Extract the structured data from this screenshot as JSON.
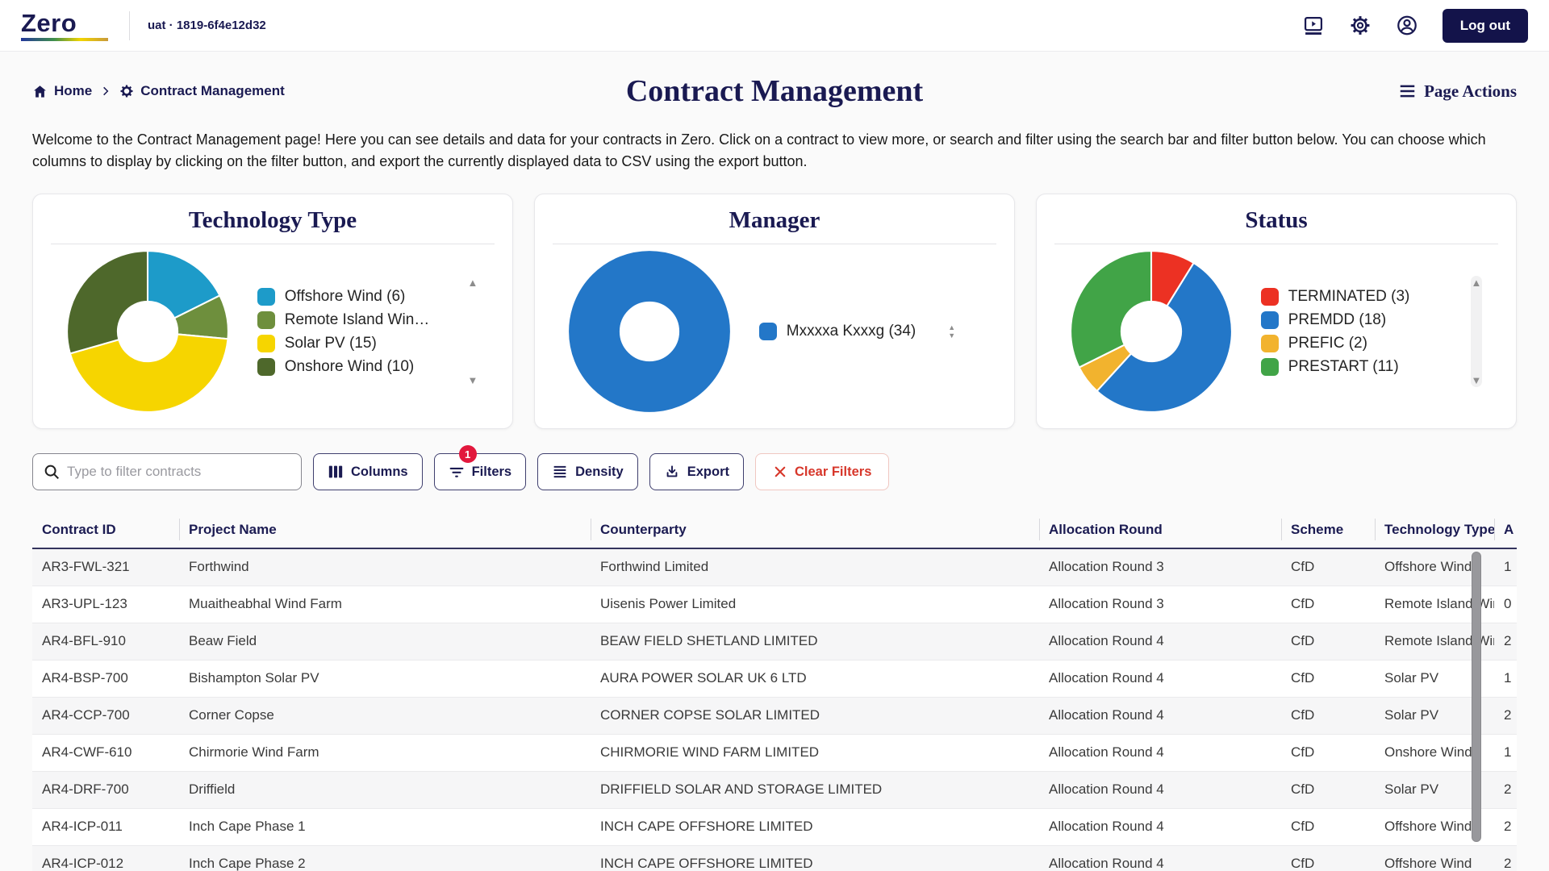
{
  "topbar": {
    "logo": "Zero",
    "environment": "uat · 1819-6f4e12d32",
    "logout_label": "Log out"
  },
  "breadcrumb": {
    "home": "Home",
    "current": "Contract Management"
  },
  "page": {
    "title": "Contract Management",
    "actions_label": "Page Actions",
    "intro": "Welcome to the Contract Management page! Here you can see details and data for your contracts in Zero. Click on a contract to view more, or search and filter using the search bar and filter button below. You can choose which columns to display by clicking on the filter button, and export the currently displayed data to CSV using the export button."
  },
  "chart_data": [
    {
      "type": "pie",
      "title": "Technology Type",
      "legend_position": "right",
      "scroll": "arrows",
      "series": [
        {
          "name": "Offshore Wind",
          "value": 6,
          "color": "#1D9BC9",
          "legend": "Offshore Wind (6)"
        },
        {
          "name": "Remote Island Wind",
          "value": 3,
          "color": "#6E8F3D",
          "legend": "Remote Island Win…"
        },
        {
          "name": "Solar PV",
          "value": 15,
          "color": "#F6D500",
          "legend": "Solar PV (15)"
        },
        {
          "name": "Onshore Wind",
          "value": 10,
          "color": "#4E682B",
          "legend": "Onshore Wind (10)"
        }
      ]
    },
    {
      "type": "pie",
      "title": "Manager",
      "legend_position": "right",
      "scroll": "spinner",
      "series": [
        {
          "name": "Mxxxxa Kxxxg",
          "value": 34,
          "color": "#2377C8",
          "legend": "Mxxxxa Kxxxg (34)"
        }
      ]
    },
    {
      "type": "pie",
      "title": "Status",
      "legend_position": "right",
      "scroll": "arrows-track",
      "series": [
        {
          "name": "TERMINATED",
          "value": 3,
          "color": "#EC3123",
          "legend": "TERMINATED (3)"
        },
        {
          "name": "PREMDD",
          "value": 18,
          "color": "#2377C8",
          "legend": "PREMDD (18)"
        },
        {
          "name": "PREFIC",
          "value": 2,
          "color": "#F2B32E",
          "legend": "PREFIC (2)"
        },
        {
          "name": "PRESTART",
          "value": 11,
          "color": "#41A447",
          "legend": "PRESTART (11)"
        }
      ]
    }
  ],
  "toolbar": {
    "search_placeholder": "Type to filter contracts",
    "columns_label": "Columns",
    "filters_label": "Filters",
    "filters_badge": "1",
    "density_label": "Density",
    "export_label": "Export",
    "clear_filters_label": "Clear Filters"
  },
  "table": {
    "headers": [
      "Contract ID",
      "Project Name",
      "Counterparty",
      "Allocation Round",
      "Scheme",
      "Technology Type",
      "A"
    ],
    "rows": [
      [
        "AR3-FWL-321",
        "Forthwind",
        "Forthwind Limited",
        "Allocation Round 3",
        "CfD",
        "Offshore Wind",
        "1"
      ],
      [
        "AR3-UPL-123",
        "Muaitheabhal Wind Farm",
        "Uisenis Power Limited",
        "Allocation Round 3",
        "CfD",
        "Remote Island Wind",
        "0"
      ],
      [
        "AR4-BFL-910",
        "Beaw Field",
        "BEAW FIELD SHETLAND LIMITED",
        "Allocation Round 4",
        "CfD",
        "Remote Island Wind",
        "2"
      ],
      [
        "AR4-BSP-700",
        "Bishampton Solar PV",
        "AURA POWER SOLAR UK 6 LTD",
        "Allocation Round 4",
        "CfD",
        "Solar PV",
        "1"
      ],
      [
        "AR4-CCP-700",
        "Corner Copse",
        "CORNER COPSE SOLAR LIMITED",
        "Allocation Round 4",
        "CfD",
        "Solar PV",
        "2"
      ],
      [
        "AR4-CWF-610",
        "Chirmorie Wind Farm",
        "CHIRMORIE WIND FARM LIMITED",
        "Allocation Round 4",
        "CfD",
        "Onshore Wind",
        "1"
      ],
      [
        "AR4-DRF-700",
        "Driffield",
        "DRIFFIELD SOLAR AND STORAGE LIMITED",
        "Allocation Round 4",
        "CfD",
        "Solar PV",
        "2"
      ],
      [
        "AR4-ICP-011",
        "Inch Cape Phase 1",
        "INCH CAPE OFFSHORE LIMITED",
        "Allocation Round 4",
        "CfD",
        "Offshore Wind",
        "2"
      ],
      [
        "AR4-ICP-012",
        "Inch Cape Phase 2",
        "INCH CAPE OFFSHORE LIMITED",
        "Allocation Round 4",
        "CfD",
        "Offshore Wind",
        "2"
      ]
    ]
  }
}
